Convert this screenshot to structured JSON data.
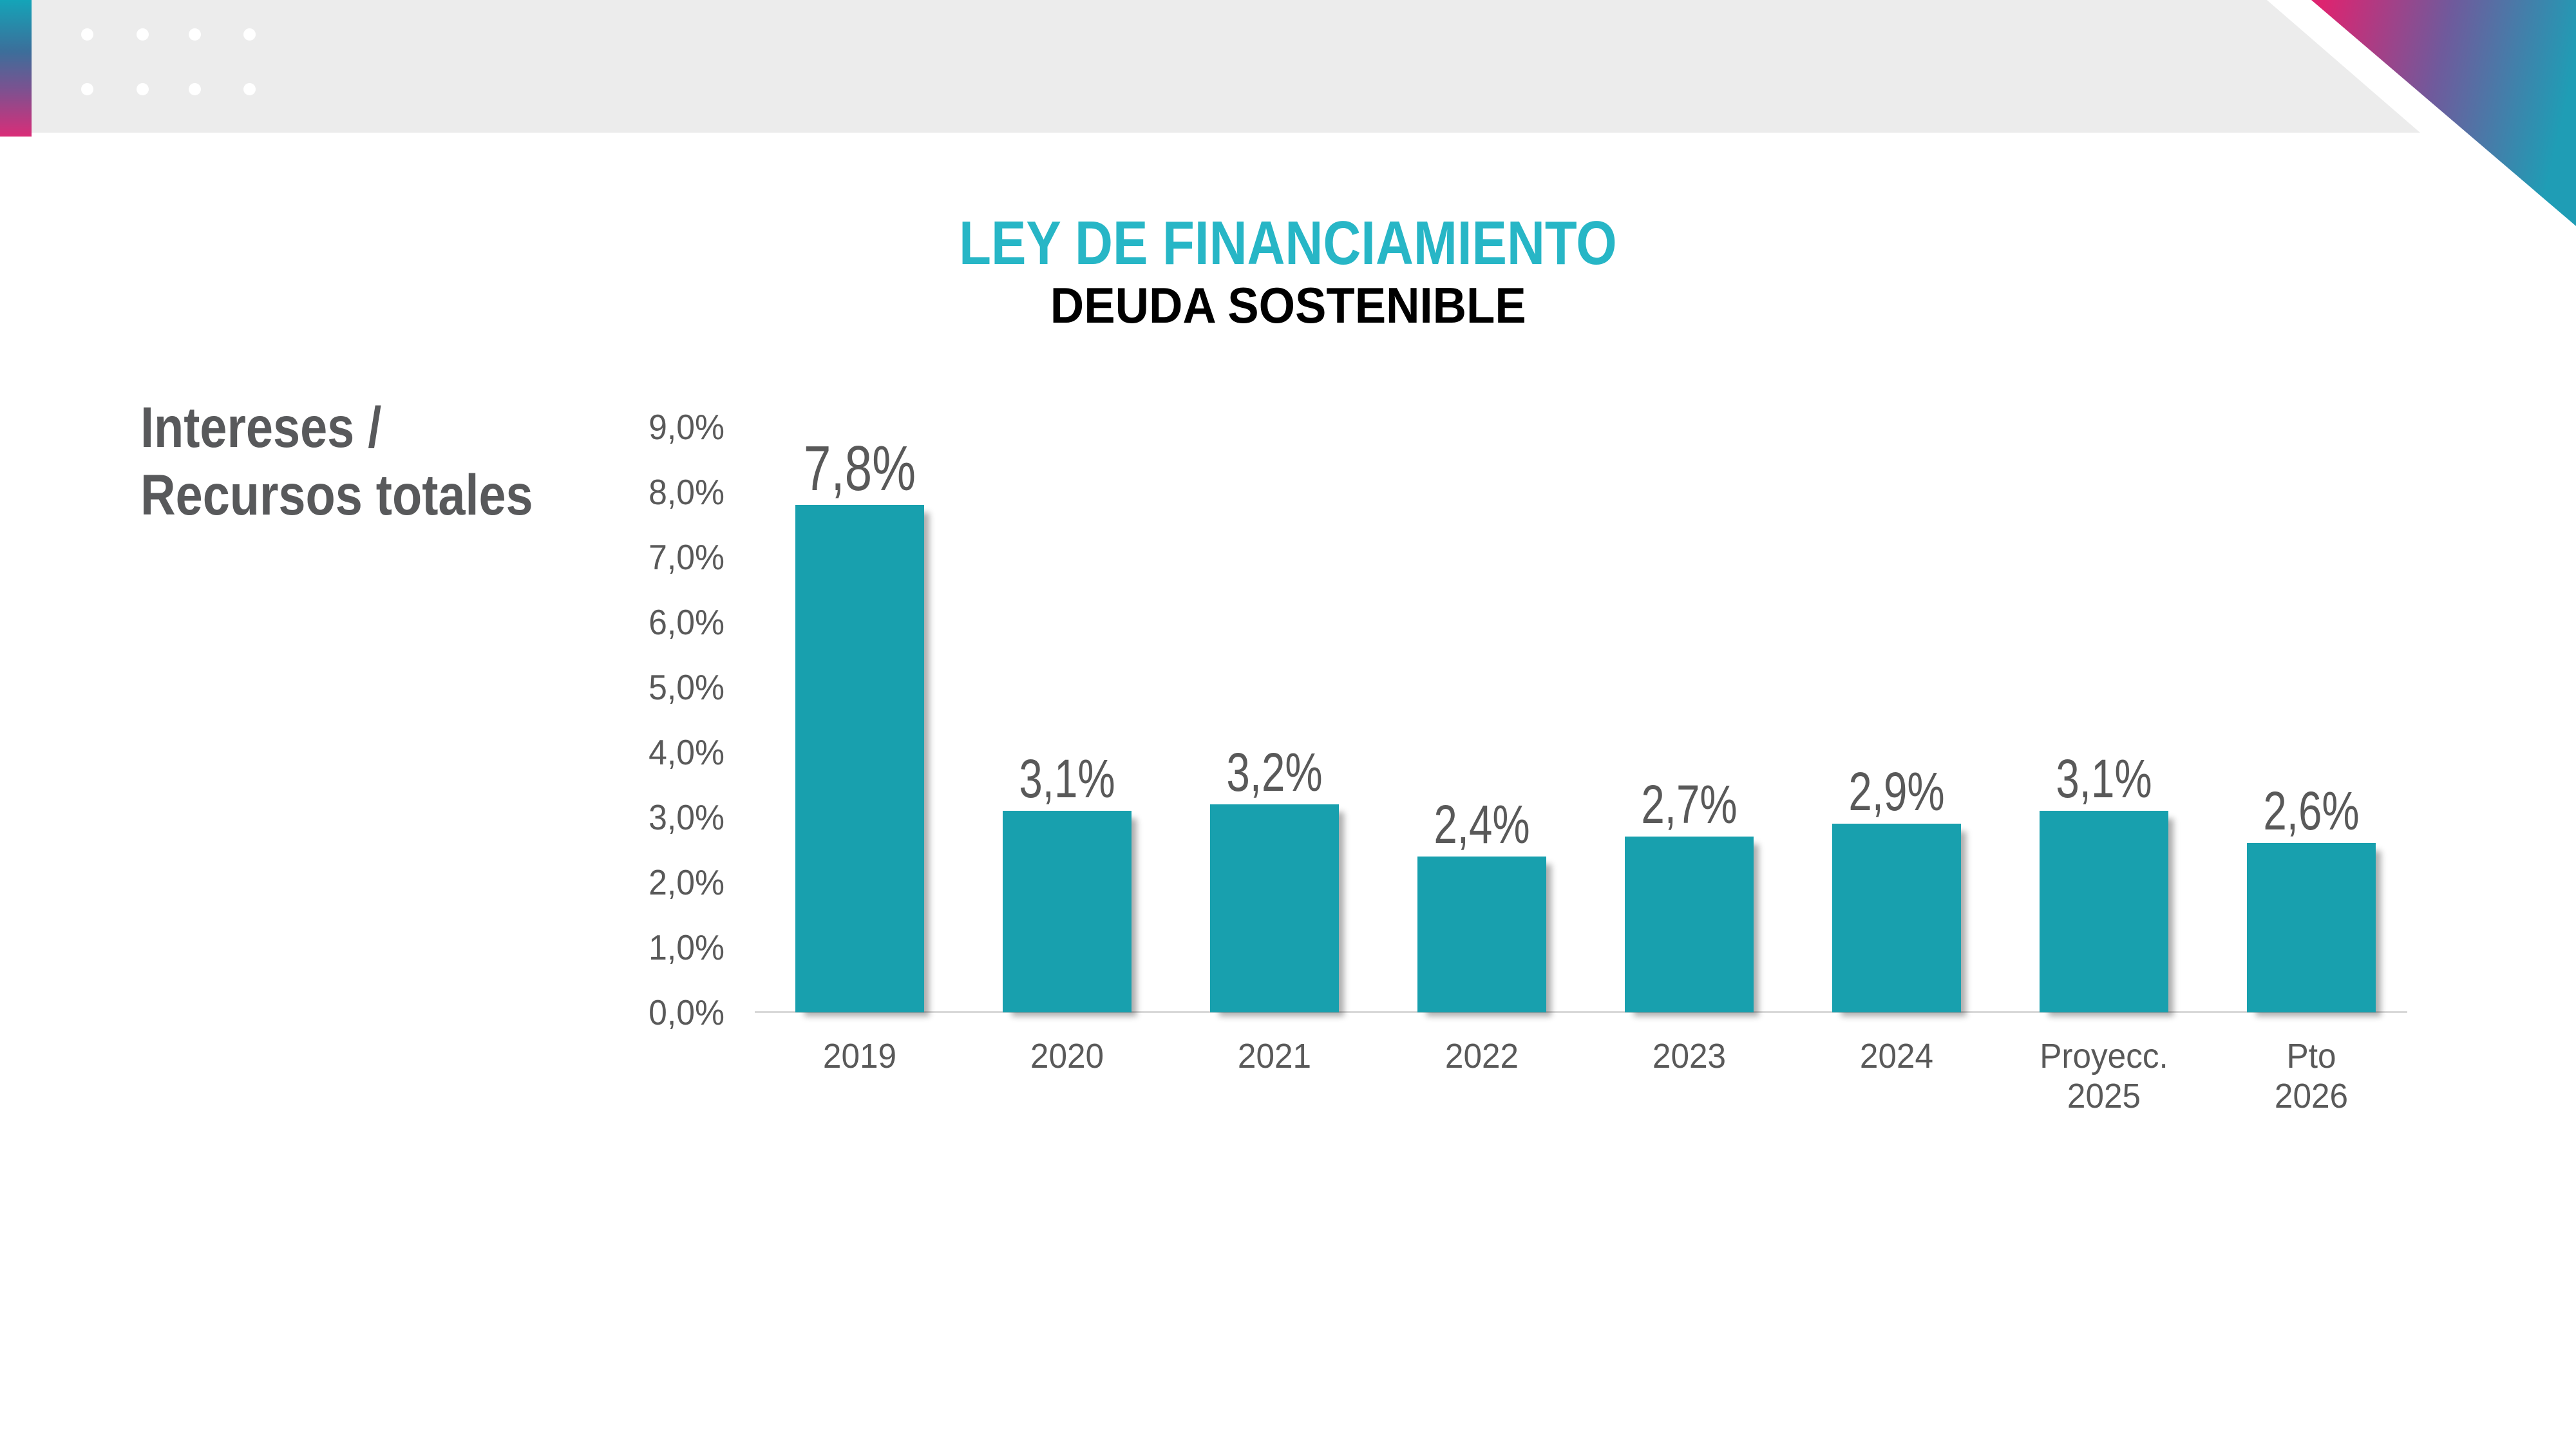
{
  "slide": {
    "title": {
      "text": "LEY DE FINANCIAMIENTO",
      "color": "#27b6c6"
    },
    "subtitle": {
      "text": "DEUDA SOSTENIBLE",
      "color": "#000000"
    },
    "y_axis_title": {
      "line1": "Intereses /",
      "line2": "Recursos totales",
      "color": "#58595b"
    }
  },
  "decor": {
    "header_bar_color": "#ececec",
    "dot_color": "#ffffff",
    "left_strip_gradient": [
      "#14a4b8",
      "#3c6e9a",
      "#7d5190",
      "#da2d78"
    ],
    "corner_gradient": [
      "#dd2470",
      "#6f5a9c",
      "#1f9db5"
    ]
  },
  "chart_data": {
    "type": "bar",
    "title": "",
    "xlabel": "",
    "ylabel": "Intereses / Recursos totales",
    "categories": [
      "2019",
      "2020",
      "2021",
      "2022",
      "2023",
      "2024",
      "Proyecc.\n2025",
      "Pto\n2026"
    ],
    "values": [
      7.8,
      3.1,
      3.2,
      2.4,
      2.7,
      2.9,
      3.1,
      2.6
    ],
    "bar_labels": [
      "7,8%",
      "3,1%",
      "3,2%",
      "2,4%",
      "2,7%",
      "2,9%",
      "3,1%",
      "2,6%"
    ],
    "y_ticks": [
      "9,0%",
      "8,0%",
      "7,0%",
      "6,0%",
      "5,0%",
      "4,0%",
      "3,0%",
      "2,0%",
      "1,0%",
      "0,0%"
    ],
    "y_tick_values": [
      9,
      8,
      7,
      6,
      5,
      4,
      3,
      2,
      1,
      0
    ],
    "ylim": [
      0,
      9
    ],
    "grid": false,
    "legend": false,
    "bar_color": "#18a0ae",
    "tick_label_color": "#595959",
    "data_label_color": "#595959",
    "axis_line_color": "#d9d9d9"
  }
}
